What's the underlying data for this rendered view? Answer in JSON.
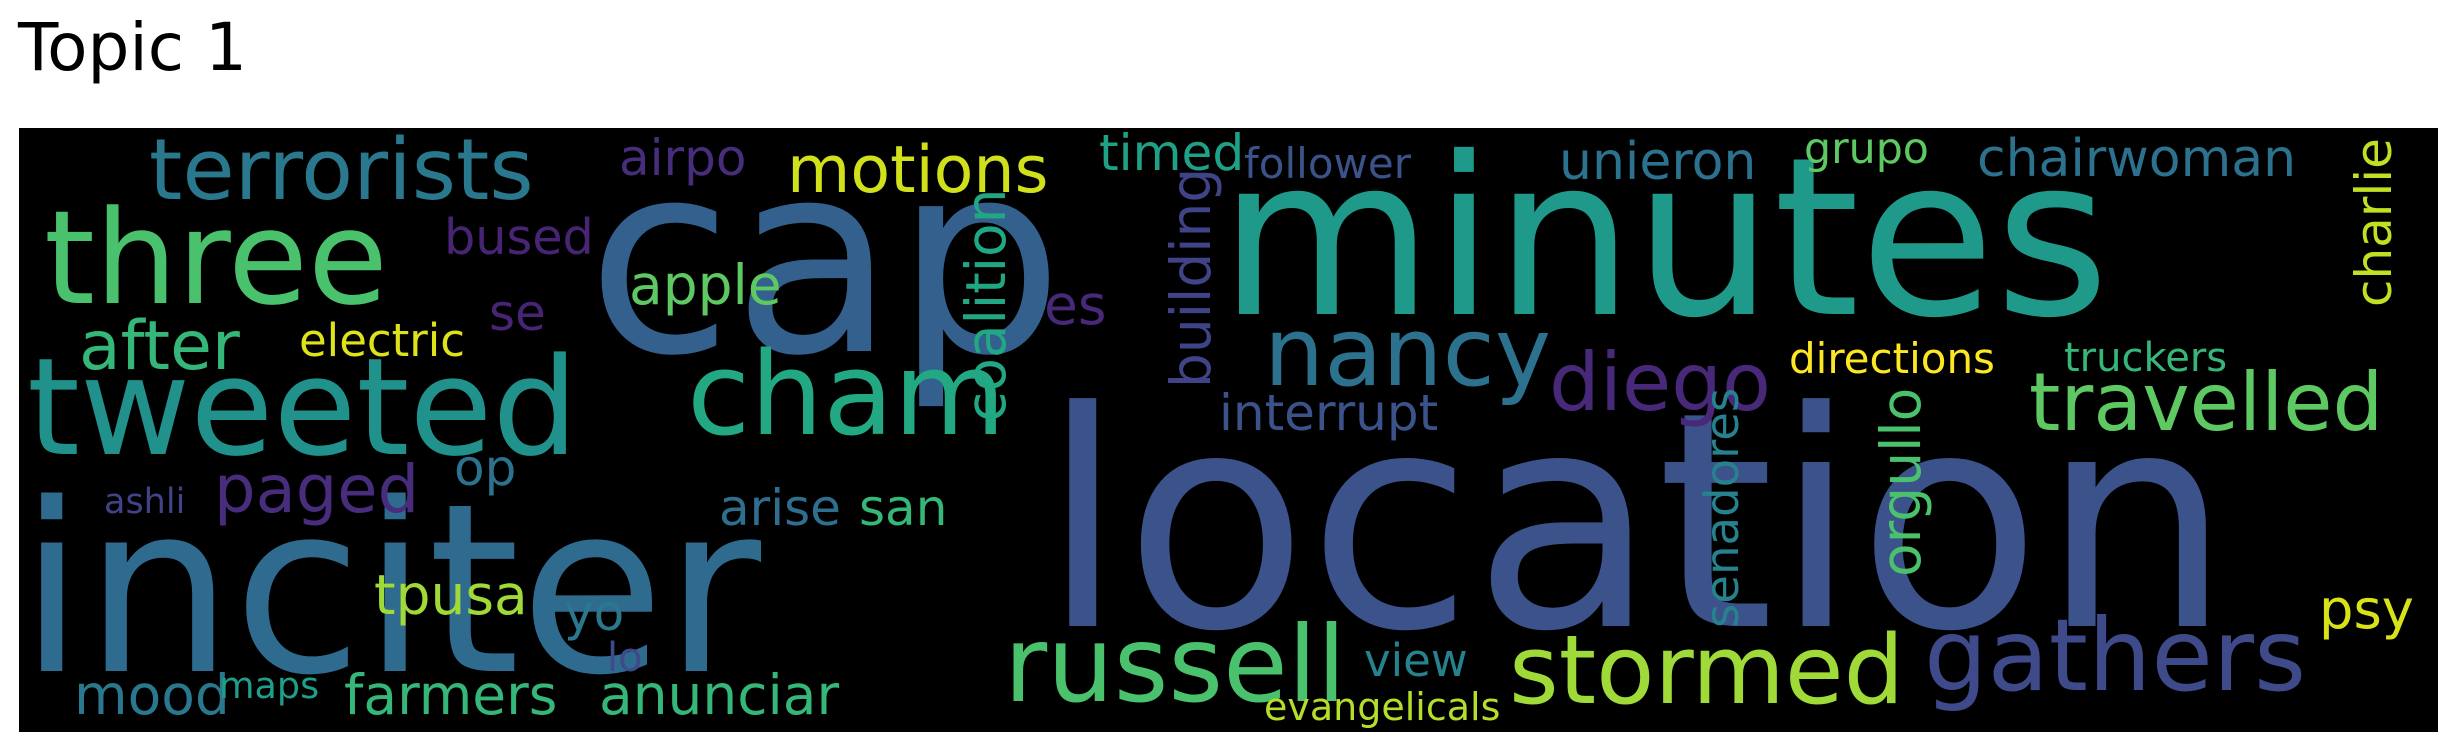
{
  "title": "Topic 1",
  "words": [
    {
      "text": "cap",
      "color": "#34608d"
    },
    {
      "text": "minutes",
      "color": "#1f9a8a"
    },
    {
      "text": "location",
      "color": "#3b528b"
    },
    {
      "text": "inciter",
      "color": "#2f6b8e"
    },
    {
      "text": "three",
      "color": "#4ac16d"
    },
    {
      "text": "tweeted",
      "color": "#21918c"
    },
    {
      "text": "terrorists",
      "color": "#2a788e"
    },
    {
      "text": "cham",
      "color": "#23a884"
    },
    {
      "text": "nancy",
      "color": "#2c728e"
    },
    {
      "text": "diego",
      "color": "#482878"
    },
    {
      "text": "russell",
      "color": "#4ac16d"
    },
    {
      "text": "stormed",
      "color": "#a0da39"
    },
    {
      "text": "gathers",
      "color": "#3e4a89"
    },
    {
      "text": "travelled",
      "color": "#5ec962"
    },
    {
      "text": "motions",
      "color": "#d0e11c"
    },
    {
      "text": "after",
      "color": "#35b779"
    },
    {
      "text": "paged",
      "color": "#472d7b"
    },
    {
      "text": "timed",
      "color": "#1fa187"
    },
    {
      "text": "unieron",
      "color": "#2c728e"
    },
    {
      "text": "chairwoman",
      "color": "#2c728e"
    },
    {
      "text": "charlie",
      "color": "#c2df23"
    },
    {
      "text": "airpo",
      "color": "#472d7b"
    },
    {
      "text": "follower",
      "color": "#3b528b"
    },
    {
      "text": "grupo",
      "color": "#5ec962"
    },
    {
      "text": "bused",
      "color": "#482475"
    },
    {
      "text": "apple",
      "color": "#5ec962"
    },
    {
      "text": "electric",
      "color": "#dde318"
    },
    {
      "text": "se",
      "color": "#482475"
    },
    {
      "text": "es",
      "color": "#482878"
    },
    {
      "text": "coalition",
      "color": "#22a785"
    },
    {
      "text": "building",
      "color": "#404387"
    },
    {
      "text": "interrupt",
      "color": "#3b528b"
    },
    {
      "text": "directions",
      "color": "#fde725"
    },
    {
      "text": "truckers",
      "color": "#35b779"
    },
    {
      "text": "op",
      "color": "#2c728e"
    },
    {
      "text": "arise",
      "color": "#2e6e8e"
    },
    {
      "text": "san",
      "color": "#35b779"
    },
    {
      "text": "ashli",
      "color": "#404387"
    },
    {
      "text": "tpusa",
      "color": "#a0da39"
    },
    {
      "text": "yo",
      "color": "#2a788e"
    },
    {
      "text": "lo",
      "color": "#3e4a89"
    },
    {
      "text": "mood",
      "color": "#2a788e"
    },
    {
      "text": "maps",
      "color": "#1f9e89"
    },
    {
      "text": "farmers",
      "color": "#35b779"
    },
    {
      "text": "anunciar",
      "color": "#35b779"
    },
    {
      "text": "view",
      "color": "#26828e"
    },
    {
      "text": "evangelicals",
      "color": "#b5de2b"
    },
    {
      "text": "senadores",
      "color": "#26828e"
    },
    {
      "text": "orgullo",
      "color": "#4ac16d"
    },
    {
      "text": "psy",
      "color": "#d8e219"
    }
  ]
}
